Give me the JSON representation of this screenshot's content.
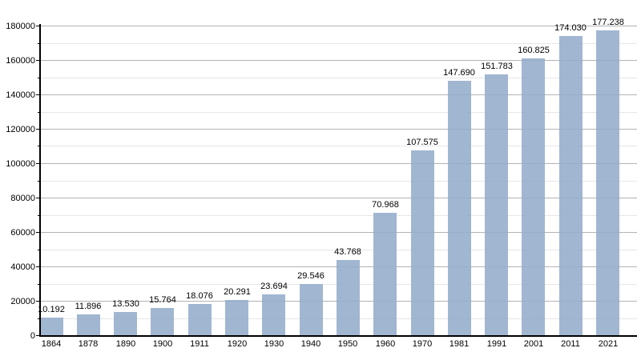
{
  "chart_data": {
    "type": "bar",
    "title": "",
    "xlabel": "",
    "ylabel": "",
    "categories": [
      "1864",
      "1878",
      "1890",
      "1900",
      "1911",
      "1920",
      "1930",
      "1940",
      "1950",
      "1960",
      "1970",
      "1981",
      "1991",
      "2001",
      "2011",
      "2021"
    ],
    "values": [
      10192,
      11896,
      13530,
      15764,
      18076,
      20291,
      23694,
      29546,
      43768,
      70968,
      107575,
      147690,
      151783,
      160825,
      174030,
      177238
    ],
    "bar_labels": [
      "10.192",
      "11.896",
      "13.530",
      "15.764",
      "18.076",
      "20.291",
      "23.694",
      "29.546",
      "43.768",
      "70.968",
      "107.575",
      "147.690",
      "151.783",
      "160.825",
      "174.030",
      "177.238"
    ],
    "ylim": [
      0,
      180000
    ],
    "y_major_step": 20000,
    "y_minor_step": 10000,
    "y_tick_labels": [
      "0",
      "20000",
      "40000",
      "60000",
      "80000",
      "100000",
      "120000",
      "140000",
      "160000",
      "180000"
    ],
    "grid": true,
    "legend": "none",
    "colors": {
      "bar": "rgba(148,172,203,0.88)",
      "bar_solid": "#a3b8d2",
      "major_grid": "#b3b3b3",
      "minor_grid": "#e7e7e7",
      "axis": "#000000",
      "text": "#000000",
      "background": "#ffffff"
    }
  }
}
